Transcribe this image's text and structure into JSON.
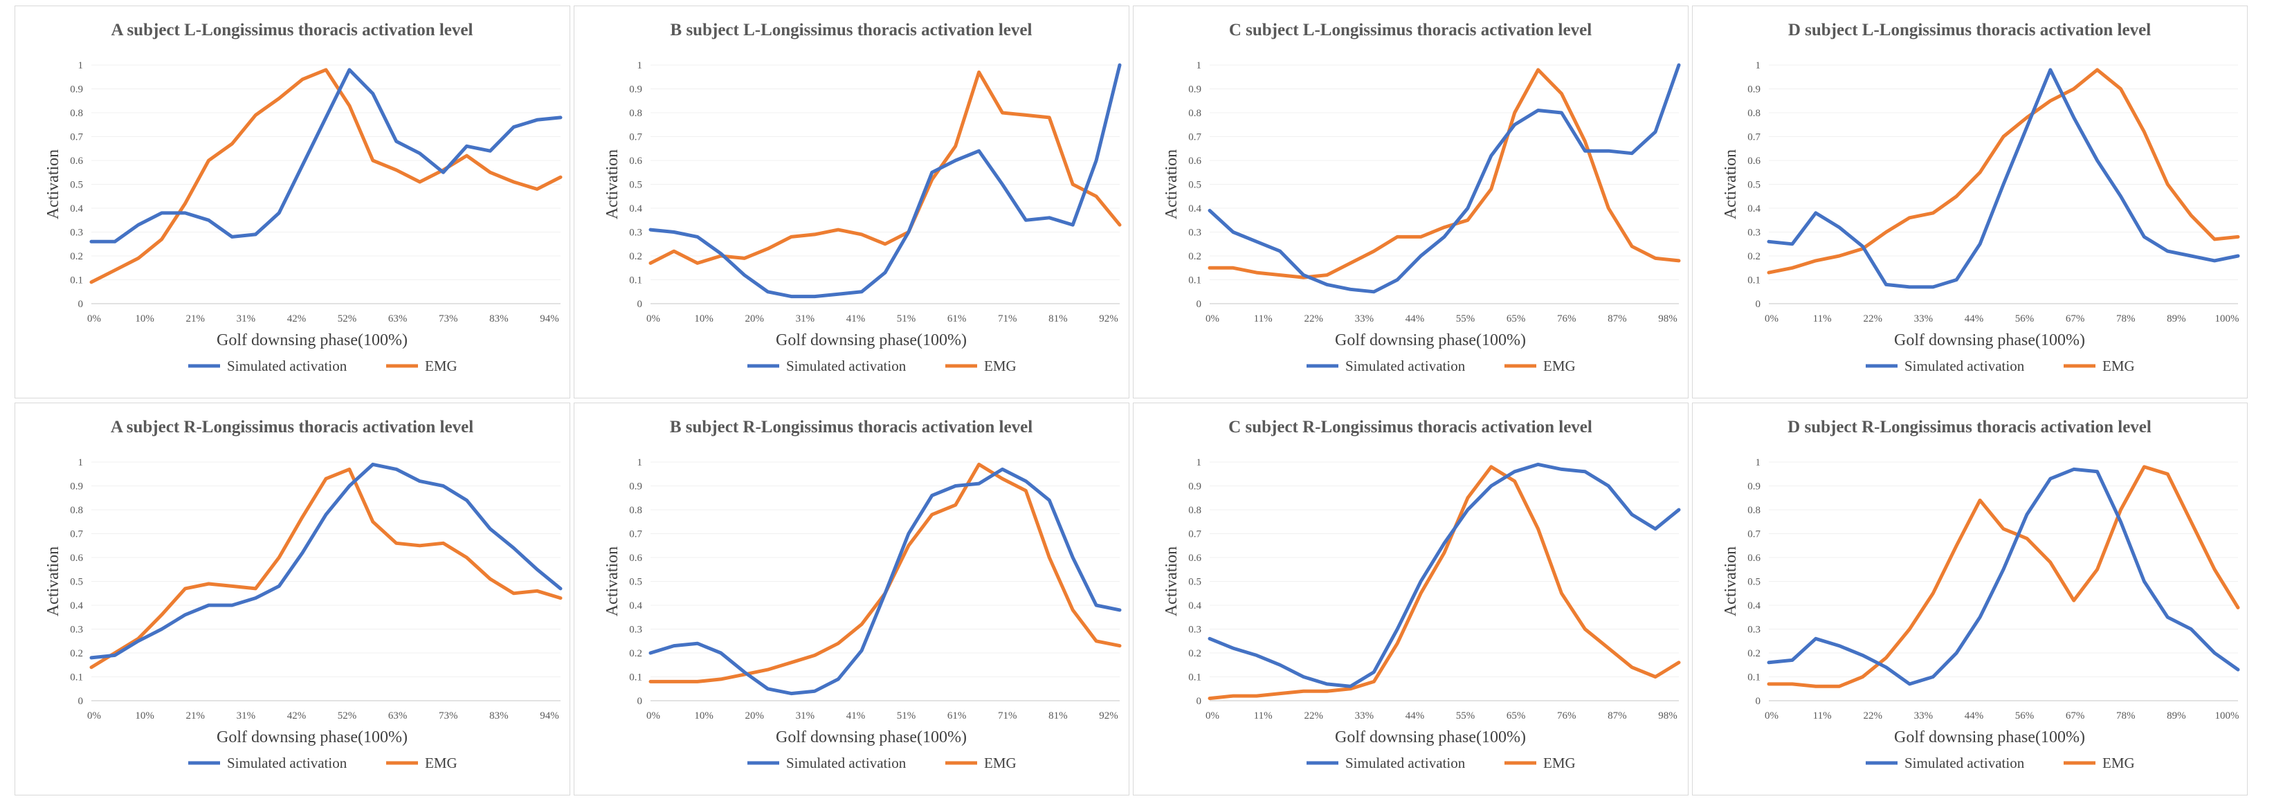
{
  "chart_data": [
    {
      "type": "line",
      "title": "A subject L-Longissimus thoracis activation level",
      "xlabel": "Golf downsing phase(100%)",
      "ylabel": "Activation",
      "ylim": [
        0,
        1
      ],
      "yticks": [
        "0",
        "0.1",
        "0.2",
        "0.3",
        "0.4",
        "0.5",
        "0.6",
        "0.7",
        "0.8",
        "0.9",
        "1"
      ],
      "xticks": [
        "0%",
        "10%",
        "21%",
        "31%",
        "42%",
        "52%",
        "63%",
        "73%",
        "83%",
        "94%"
      ],
      "x": [
        0,
        5,
        10,
        15,
        20,
        25,
        30,
        35,
        40,
        45,
        50,
        55,
        60,
        65,
        70,
        75,
        80,
        85,
        90,
        95,
        100
      ],
      "series": [
        {
          "name": "Simulated activation",
          "color": "#4472C4",
          "values": [
            0.26,
            0.26,
            0.33,
            0.38,
            0.38,
            0.35,
            0.28,
            0.29,
            0.38,
            0.58,
            0.78,
            0.98,
            0.88,
            0.68,
            0.63,
            0.55,
            0.66,
            0.64,
            0.74,
            0.77,
            0.78
          ]
        },
        {
          "name": "EMG",
          "color": "#ED7D31",
          "values": [
            0.09,
            0.14,
            0.19,
            0.27,
            0.42,
            0.6,
            0.67,
            0.79,
            0.86,
            0.94,
            0.98,
            0.83,
            0.6,
            0.56,
            0.51,
            0.56,
            0.62,
            0.55,
            0.51,
            0.48,
            0.53
          ]
        }
      ]
    },
    {
      "type": "line",
      "title": "B subject L-Longissimus thoracis activation level",
      "xlabel": "Golf downsing phase(100%)",
      "ylabel": "Activation",
      "ylim": [
        0,
        1
      ],
      "yticks": [
        "0",
        "0.1",
        "0.2",
        "0.3",
        "0.4",
        "0.5",
        "0.6",
        "0.7",
        "0.8",
        "0.9",
        "1"
      ],
      "xticks": [
        "0%",
        "10%",
        "20%",
        "31%",
        "41%",
        "51%",
        "61%",
        "71%",
        "81%",
        "92%"
      ],
      "x": [
        0,
        5,
        10,
        15,
        20,
        25,
        30,
        35,
        40,
        45,
        50,
        55,
        60,
        65,
        70,
        75,
        80,
        85,
        90,
        95,
        100
      ],
      "series": [
        {
          "name": "Simulated activation",
          "color": "#4472C4",
          "values": [
            0.31,
            0.3,
            0.28,
            0.21,
            0.12,
            0.05,
            0.03,
            0.03,
            0.04,
            0.05,
            0.13,
            0.3,
            0.55,
            0.6,
            0.64,
            0.5,
            0.35,
            0.36,
            0.33,
            0.6,
            1.0
          ]
        },
        {
          "name": "EMG",
          "color": "#ED7D31",
          "values": [
            0.17,
            0.22,
            0.17,
            0.2,
            0.19,
            0.23,
            0.28,
            0.29,
            0.31,
            0.29,
            0.25,
            0.3,
            0.52,
            0.66,
            0.97,
            0.8,
            0.79,
            0.78,
            0.5,
            0.45,
            0.33
          ]
        }
      ]
    },
    {
      "type": "line",
      "title": "C subject L-Longissimus thoracis activation level",
      "xlabel": "Golf downsing phase(100%)",
      "ylabel": "Activation",
      "ylim": [
        0,
        1
      ],
      "yticks": [
        "0",
        "0.1",
        "0.2",
        "0.3",
        "0.4",
        "0.5",
        "0.6",
        "0.7",
        "0.8",
        "0.9",
        "1"
      ],
      "xticks": [
        "0%",
        "11%",
        "22%",
        "33%",
        "44%",
        "55%",
        "65%",
        "76%",
        "87%",
        "98%"
      ],
      "x": [
        0,
        5,
        10,
        15,
        20,
        25,
        30,
        35,
        40,
        45,
        50,
        55,
        60,
        65,
        70,
        75,
        80,
        85,
        90,
        95,
        100
      ],
      "series": [
        {
          "name": "Simulated activation",
          "color": "#4472C4",
          "values": [
            0.39,
            0.3,
            0.26,
            0.22,
            0.12,
            0.08,
            0.06,
            0.05,
            0.1,
            0.2,
            0.28,
            0.4,
            0.62,
            0.75,
            0.81,
            0.8,
            0.64,
            0.64,
            0.63,
            0.72,
            1.0
          ]
        },
        {
          "name": "EMG",
          "color": "#ED7D31",
          "values": [
            0.15,
            0.15,
            0.13,
            0.12,
            0.11,
            0.12,
            0.17,
            0.22,
            0.28,
            0.28,
            0.32,
            0.35,
            0.48,
            0.8,
            0.98,
            0.88,
            0.68,
            0.4,
            0.24,
            0.19,
            0.18
          ]
        }
      ]
    },
    {
      "type": "line",
      "title": "D subject L-Longissimus thoracis activation level",
      "xlabel": "Golf downsing phase(100%)",
      "ylabel": "Activation",
      "ylim": [
        0,
        1
      ],
      "yticks": [
        "0",
        "0.1",
        "0.2",
        "0.3",
        "0.4",
        "0.5",
        "0.6",
        "0.7",
        "0.8",
        "0.9",
        "1"
      ],
      "xticks": [
        "0%",
        "11%",
        "22%",
        "33%",
        "44%",
        "56%",
        "67%",
        "78%",
        "89%",
        "100%"
      ],
      "x": [
        0,
        5,
        10,
        15,
        20,
        25,
        30,
        35,
        40,
        45,
        50,
        55,
        60,
        65,
        70,
        75,
        80,
        85,
        90,
        95,
        100
      ],
      "series": [
        {
          "name": "Simulated activation",
          "color": "#4472C4",
          "values": [
            0.26,
            0.25,
            0.38,
            0.32,
            0.24,
            0.08,
            0.07,
            0.07,
            0.1,
            0.25,
            0.5,
            0.74,
            0.98,
            0.78,
            0.6,
            0.45,
            0.28,
            0.22,
            0.2,
            0.18,
            0.2
          ]
        },
        {
          "name": "EMG",
          "color": "#ED7D31",
          "values": [
            0.13,
            0.15,
            0.18,
            0.2,
            0.23,
            0.3,
            0.36,
            0.38,
            0.45,
            0.55,
            0.7,
            0.78,
            0.85,
            0.9,
            0.98,
            0.9,
            0.72,
            0.5,
            0.37,
            0.27,
            0.28
          ]
        }
      ]
    },
    {
      "type": "line",
      "title": "A subject R-Longissimus thoracis activation level",
      "xlabel": "Golf downsing phase(100%)",
      "ylabel": "Activation",
      "ylim": [
        0,
        1
      ],
      "yticks": [
        "0",
        "0.1",
        "0.2",
        "0.3",
        "0.4",
        "0.5",
        "0.6",
        "0.7",
        "0.8",
        "0.9",
        "1"
      ],
      "xticks": [
        "0%",
        "10%",
        "21%",
        "31%",
        "42%",
        "52%",
        "63%",
        "73%",
        "83%",
        "94%"
      ],
      "x": [
        0,
        5,
        10,
        15,
        20,
        25,
        30,
        35,
        40,
        45,
        50,
        55,
        60,
        65,
        70,
        75,
        80,
        85,
        90,
        95,
        100
      ],
      "series": [
        {
          "name": "Simulated activation",
          "color": "#4472C4",
          "values": [
            0.18,
            0.19,
            0.25,
            0.3,
            0.36,
            0.4,
            0.4,
            0.43,
            0.48,
            0.62,
            0.78,
            0.9,
            0.99,
            0.97,
            0.92,
            0.9,
            0.84,
            0.72,
            0.64,
            0.55,
            0.47
          ]
        },
        {
          "name": "EMG",
          "color": "#ED7D31",
          "values": [
            0.14,
            0.2,
            0.26,
            0.36,
            0.47,
            0.49,
            0.48,
            0.47,
            0.6,
            0.77,
            0.93,
            0.97,
            0.75,
            0.66,
            0.65,
            0.66,
            0.6,
            0.51,
            0.45,
            0.46,
            0.43
          ]
        }
      ]
    },
    {
      "type": "line",
      "title": "B subject R-Longissimus thoracis activation level",
      "xlabel": "Golf downsing phase(100%)",
      "ylabel": "Activation",
      "ylim": [
        0,
        1
      ],
      "yticks": [
        "0",
        "0.1",
        "0.2",
        "0.3",
        "0.4",
        "0.5",
        "0.6",
        "0.7",
        "0.8",
        "0.9",
        "1"
      ],
      "xticks": [
        "0%",
        "10%",
        "20%",
        "31%",
        "41%",
        "51%",
        "61%",
        "71%",
        "81%",
        "92%"
      ],
      "x": [
        0,
        5,
        10,
        15,
        20,
        25,
        30,
        35,
        40,
        45,
        50,
        55,
        60,
        65,
        70,
        75,
        80,
        85,
        90,
        95,
        100
      ],
      "series": [
        {
          "name": "Simulated activation",
          "color": "#4472C4",
          "values": [
            0.2,
            0.23,
            0.24,
            0.2,
            0.12,
            0.05,
            0.03,
            0.04,
            0.09,
            0.21,
            0.45,
            0.7,
            0.86,
            0.9,
            0.91,
            0.97,
            0.92,
            0.84,
            0.6,
            0.4,
            0.38
          ]
        },
        {
          "name": "EMG",
          "color": "#ED7D31",
          "values": [
            0.08,
            0.08,
            0.08,
            0.09,
            0.11,
            0.13,
            0.16,
            0.19,
            0.24,
            0.32,
            0.45,
            0.65,
            0.78,
            0.82,
            0.99,
            0.93,
            0.88,
            0.6,
            0.38,
            0.25,
            0.23
          ]
        }
      ]
    },
    {
      "type": "line",
      "title": "C subject R-Longissimus thoracis activation level",
      "xlabel": "Golf downsing phase(100%)",
      "ylabel": "Activation",
      "ylim": [
        0,
        1
      ],
      "yticks": [
        "0",
        "0.1",
        "0.2",
        "0.3",
        "0.4",
        "0.5",
        "0.6",
        "0.7",
        "0.8",
        "0.9",
        "1"
      ],
      "xticks": [
        "0%",
        "11%",
        "22%",
        "33%",
        "44%",
        "55%",
        "65%",
        "76%",
        "87%",
        "98%"
      ],
      "x": [
        0,
        5,
        10,
        15,
        20,
        25,
        30,
        35,
        40,
        45,
        50,
        55,
        60,
        65,
        70,
        75,
        80,
        85,
        90,
        95,
        100
      ],
      "series": [
        {
          "name": "Simulated activation",
          "color": "#4472C4",
          "values": [
            0.26,
            0.22,
            0.19,
            0.15,
            0.1,
            0.07,
            0.06,
            0.12,
            0.3,
            0.5,
            0.66,
            0.8,
            0.9,
            0.96,
            0.99,
            0.97,
            0.96,
            0.9,
            0.78,
            0.72,
            0.8
          ]
        },
        {
          "name": "EMG",
          "color": "#ED7D31",
          "values": [
            0.01,
            0.02,
            0.02,
            0.03,
            0.04,
            0.04,
            0.05,
            0.08,
            0.24,
            0.45,
            0.62,
            0.85,
            0.98,
            0.92,
            0.72,
            0.45,
            0.3,
            0.22,
            0.14,
            0.1,
            0.16
          ]
        }
      ]
    },
    {
      "type": "line",
      "title": "D subject R-Longissimus thoracis activation level",
      "xlabel": "Golf downsing phase(100%)",
      "ylabel": "Activation",
      "ylim": [
        0,
        1
      ],
      "yticks": [
        "0",
        "0.1",
        "0.2",
        "0.3",
        "0.4",
        "0.5",
        "0.6",
        "0.7",
        "0.8",
        "0.9",
        "1"
      ],
      "xticks": [
        "0%",
        "11%",
        "22%",
        "33%",
        "44%",
        "56%",
        "67%",
        "78%",
        "89%",
        "100%"
      ],
      "x": [
        0,
        5,
        10,
        15,
        20,
        25,
        30,
        35,
        40,
        45,
        50,
        55,
        60,
        65,
        70,
        75,
        80,
        85,
        90,
        95,
        100
      ],
      "series": [
        {
          "name": "Simulated activation",
          "color": "#4472C4",
          "values": [
            0.16,
            0.17,
            0.26,
            0.23,
            0.19,
            0.14,
            0.07,
            0.1,
            0.2,
            0.35,
            0.55,
            0.78,
            0.93,
            0.97,
            0.96,
            0.75,
            0.5,
            0.35,
            0.3,
            0.2,
            0.13
          ]
        },
        {
          "name": "EMG",
          "color": "#ED7D31",
          "values": [
            0.07,
            0.07,
            0.06,
            0.06,
            0.1,
            0.18,
            0.3,
            0.45,
            0.65,
            0.84,
            0.72,
            0.68,
            0.58,
            0.42,
            0.55,
            0.8,
            0.98,
            0.95,
            0.75,
            0.55,
            0.39
          ]
        }
      ]
    }
  ]
}
